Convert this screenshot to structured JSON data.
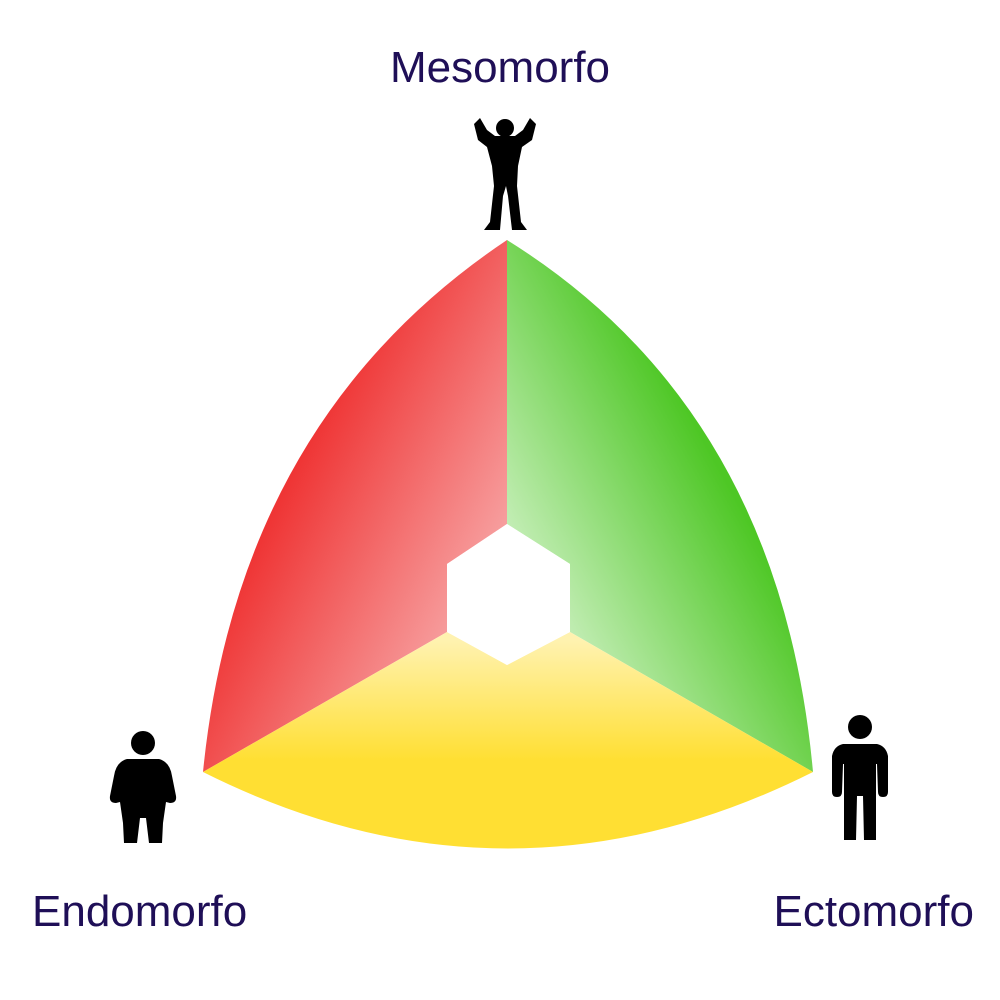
{
  "labels": {
    "top": "Mesomorfo",
    "left": "Endomorfo",
    "right": "Ectomorfo"
  },
  "icons": {
    "top": "muscular-person-icon",
    "left": "heavy-person-icon",
    "right": "slim-person-icon"
  },
  "colors": {
    "text": "#1f0f57",
    "red": "#ef3535",
    "green": "#4ec725",
    "yellow": "#ffdf33",
    "figure": "#000000"
  }
}
